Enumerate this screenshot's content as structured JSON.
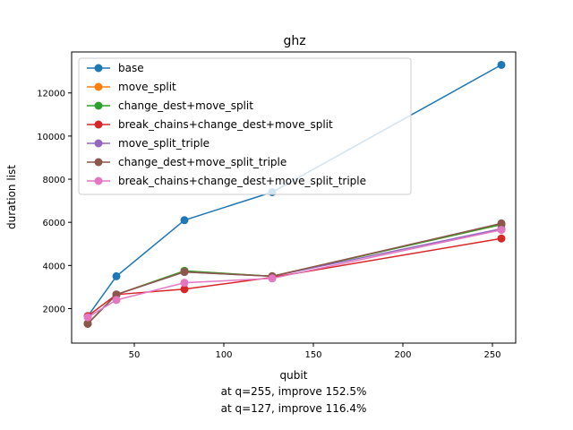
{
  "chart_data": {
    "type": "line",
    "title": "ghz",
    "xlabel": "qubit",
    "ylabel": "duration list",
    "xlim": [
      15,
      263
    ],
    "ylim": [
      400,
      13900
    ],
    "xticks": [
      50,
      100,
      150,
      200,
      250
    ],
    "yticks": [
      2000,
      4000,
      6000,
      8000,
      10000,
      12000
    ],
    "grid": false,
    "legend_position": "upper-left",
    "notes": [
      "at q=255, improve 152.5%",
      "at q=127, improve 116.4%"
    ],
    "series": [
      {
        "name": "base",
        "color": "#1f77b4",
        "x": [
          24,
          40,
          78,
          127,
          255
        ],
        "y": [
          1650,
          3500,
          6100,
          7400,
          13300
        ]
      },
      {
        "name": "move_split",
        "color": "#ff7f0e",
        "x": [
          24,
          40,
          78,
          127,
          255
        ],
        "y": [
          1300,
          2650,
          3750,
          3500,
          5900
        ]
      },
      {
        "name": "change_dest+move_split",
        "color": "#2ca02c",
        "x": [
          24,
          40,
          78,
          127,
          255
        ],
        "y": [
          1300,
          2650,
          3750,
          3500,
          5900
        ]
      },
      {
        "name": "break_chains+change_dest+move_split",
        "color": "#d62728",
        "x": [
          24,
          40,
          78,
          127,
          255
        ],
        "y": [
          1650,
          2650,
          2900,
          3450,
          5250
        ]
      },
      {
        "name": "move_split_triple",
        "color": "#9467bd",
        "x": [
          24,
          40,
          78,
          127,
          255
        ],
        "y": [
          1300,
          2650,
          3700,
          3500,
          5700
        ]
      },
      {
        "name": "change_dest+move_split_triple",
        "color": "#8c564b",
        "x": [
          24,
          40,
          78,
          127,
          255
        ],
        "y": [
          1300,
          2650,
          3700,
          3500,
          5950
        ]
      },
      {
        "name": "break_chains+change_dest+move_split_triple",
        "color": "#e377c2",
        "x": [
          24,
          40,
          78,
          127,
          255
        ],
        "y": [
          1600,
          2400,
          3200,
          3400,
          5650
        ]
      }
    ]
  }
}
